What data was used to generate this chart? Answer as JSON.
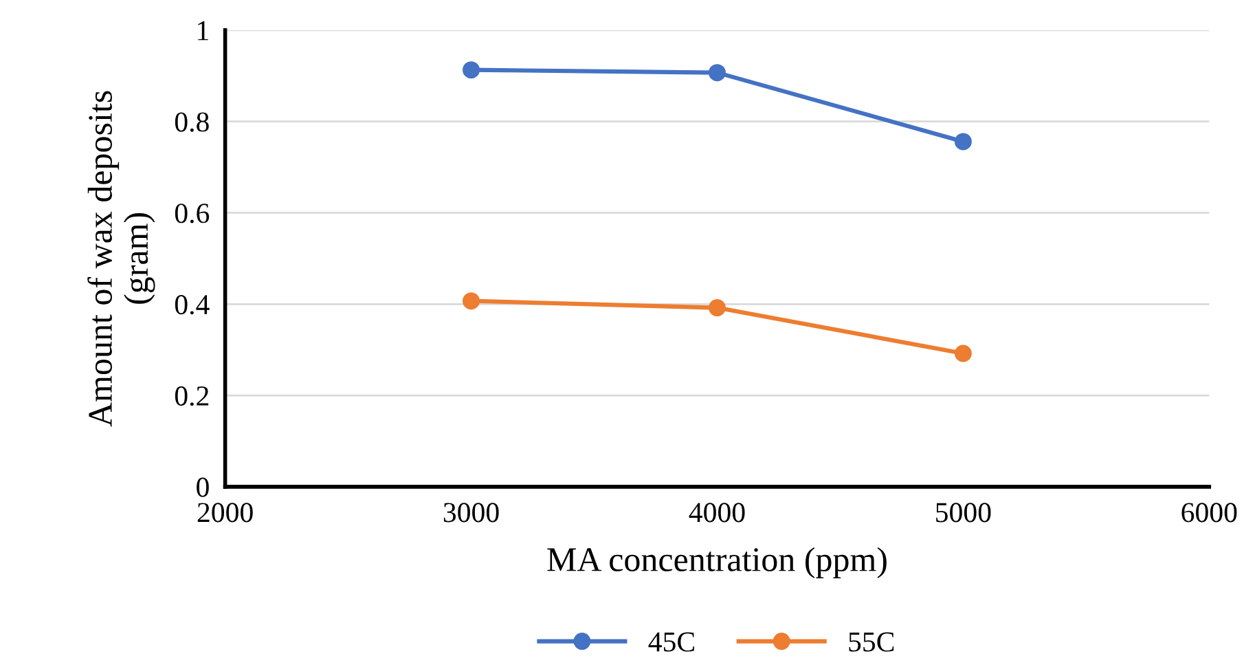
{
  "chart_data": {
    "type": "line",
    "xlabel": "MA concentration (ppm)",
    "ylabel": "Amount of wax deposits\n(gram)",
    "x": [
      3000,
      4000,
      5000
    ],
    "series": [
      {
        "name": "45C",
        "color": "#4472c4",
        "values": [
          0.913,
          0.907,
          0.756
        ]
      },
      {
        "name": "55C",
        "color": "#ed7d31",
        "values": [
          0.407,
          0.392,
          0.292
        ]
      }
    ],
    "xlim": [
      2000,
      6000
    ],
    "xticks": [
      2000,
      3000,
      4000,
      5000,
      6000
    ],
    "ylim": [
      0,
      1
    ],
    "yticks": [
      0,
      0.2,
      0.4,
      0.6,
      0.8,
      1
    ],
    "grid": "y",
    "legend": "bottom",
    "marker": "circle",
    "line_style": "solid"
  }
}
